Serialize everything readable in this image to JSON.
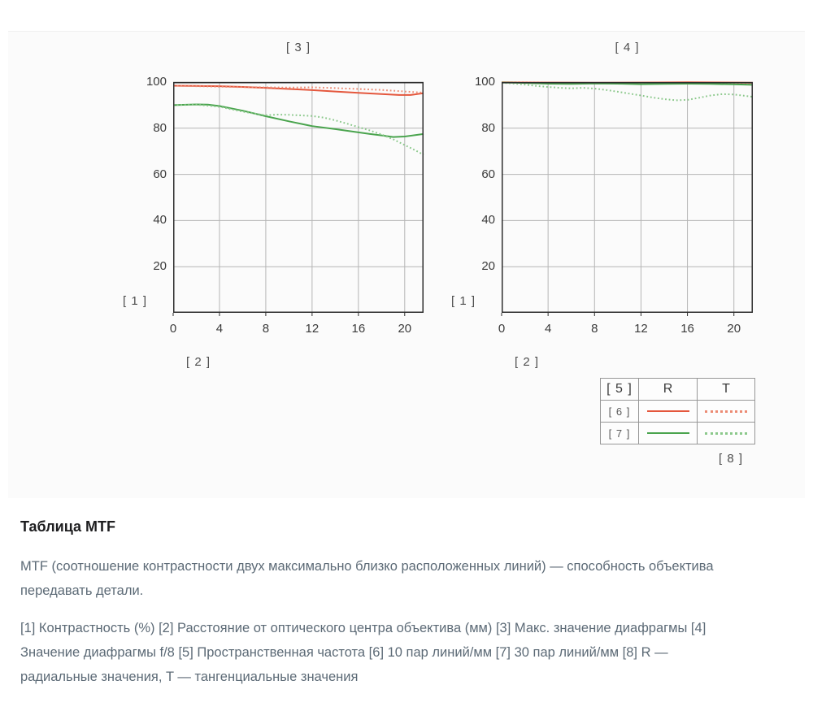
{
  "chart_data": [
    {
      "type": "line",
      "title": "[ 3 ]",
      "ylabel": "[ 1 ]",
      "xlabel": "[ 2 ]",
      "xlim": [
        0,
        21.63
      ],
      "ylim": [
        0,
        100
      ],
      "x_ticks": [
        0,
        4,
        8,
        12,
        16,
        20
      ],
      "y_ticks": [
        20,
        40,
        60,
        80,
        100
      ],
      "grid": true,
      "series": [
        {
          "name": "[6] R (10 пар линий/мм, радиальные)",
          "style": "solid",
          "color": "#e4573d",
          "points": [
            [
              0,
              98.4
            ],
            [
              2,
              98.3
            ],
            [
              4,
              98.2
            ],
            [
              6,
              97.9
            ],
            [
              8,
              97.5
            ],
            [
              10,
              97.0
            ],
            [
              12,
              96.5
            ],
            [
              14,
              95.9
            ],
            [
              16,
              95.3
            ],
            [
              18,
              94.8
            ],
            [
              19.5,
              94.4
            ],
            [
              20.5,
              94.4
            ],
            [
              21.63,
              95.2
            ]
          ]
        },
        {
          "name": "[6] T (10 пар линий/мм, тангенциальные)",
          "style": "dotted",
          "color": "#ec8b74",
          "points": [
            [
              0,
              98.4
            ],
            [
              2,
              98.2
            ],
            [
              4,
              98.0
            ],
            [
              6,
              97.8
            ],
            [
              8,
              97.7
            ],
            [
              10,
              97.6
            ],
            [
              12,
              97.7
            ],
            [
              14,
              97.4
            ],
            [
              16,
              97.0
            ],
            [
              18,
              96.6
            ],
            [
              19.5,
              96.1
            ],
            [
              21.63,
              95.4
            ]
          ]
        },
        {
          "name": "[7] R (30 пар линий/мм, радиальные)",
          "style": "solid",
          "color": "#4aa44e",
          "points": [
            [
              0,
              90.0
            ],
            [
              2,
              90.3
            ],
            [
              3,
              90.2
            ],
            [
              4,
              89.6
            ],
            [
              6,
              87.6
            ],
            [
              8,
              85.2
            ],
            [
              10,
              83.0
            ],
            [
              12,
              80.9
            ],
            [
              14,
              79.6
            ],
            [
              16,
              78.2
            ],
            [
              17,
              77.5
            ],
            [
              18,
              76.9
            ],
            [
              19,
              76.2
            ],
            [
              20,
              76.4
            ],
            [
              21.63,
              77.5
            ]
          ]
        },
        {
          "name": "[7] T (30 пар линий/мм, тангенциальные)",
          "style": "dotted",
          "color": "#8bc88b",
          "points": [
            [
              0,
              90.0
            ],
            [
              2,
              90.2
            ],
            [
              4,
              89.3
            ],
            [
              6,
              87.2
            ],
            [
              8,
              85.6
            ],
            [
              9,
              85.9
            ],
            [
              10,
              85.8
            ],
            [
              12,
              85.3
            ],
            [
              13,
              84.6
            ],
            [
              14,
              83.4
            ],
            [
              15,
              82.0
            ],
            [
              16,
              80.5
            ],
            [
              17,
              79.0
            ],
            [
              18,
              77.3
            ],
            [
              19,
              75.2
            ],
            [
              20,
              72.7
            ],
            [
              21,
              70.2
            ],
            [
              21.63,
              68.5
            ]
          ]
        }
      ]
    },
    {
      "type": "line",
      "title": "[ 4 ]",
      "ylabel": "[ 1 ]",
      "xlabel": "[ 2 ]",
      "xlim": [
        0,
        21.63
      ],
      "ylim": [
        0,
        100
      ],
      "x_ticks": [
        0,
        4,
        8,
        12,
        16,
        20
      ],
      "y_ticks": [
        20,
        40,
        60,
        80,
        100
      ],
      "grid": true,
      "series": [
        {
          "name": "[6] R (10 пар линий/мм, радиальные)",
          "style": "solid",
          "color": "#e4573d",
          "points": [
            [
              0,
              99.9
            ],
            [
              4,
              99.8
            ],
            [
              8,
              99.7
            ],
            [
              12,
              99.8
            ],
            [
              16,
              99.9
            ],
            [
              20,
              99.8
            ],
            [
              21.63,
              99.7
            ]
          ]
        },
        {
          "name": "[6] T (10 пар линий/мм, тангенциальные)",
          "style": "dotted",
          "color": "#ec8b74",
          "points": [
            [
              0,
              99.9
            ],
            [
              4,
              99.7
            ],
            [
              8,
              99.5
            ],
            [
              12,
              99.5
            ],
            [
              16,
              99.6
            ],
            [
              20,
              99.5
            ],
            [
              21.63,
              99.4
            ]
          ]
        },
        {
          "name": "[7] R (30 пар линий/мм, радиальные)",
          "style": "solid",
          "color": "#4aa44e",
          "points": [
            [
              0,
              99.8
            ],
            [
              2,
              99.6
            ],
            [
              4,
              99.3
            ],
            [
              6,
              99.2
            ],
            [
              8,
              99.4
            ],
            [
              10,
              99.3
            ],
            [
              12,
              99.1
            ],
            [
              14,
              99.2
            ],
            [
              16,
              99.3
            ],
            [
              18,
              99.2
            ],
            [
              20,
              99.0
            ],
            [
              21.63,
              98.8
            ]
          ]
        },
        {
          "name": "[7] T (30 пар линий/мм, тангенциальные)",
          "style": "dotted",
          "color": "#8bc88b",
          "points": [
            [
              0,
              99.7
            ],
            [
              1,
              99.4
            ],
            [
              2,
              98.9
            ],
            [
              3,
              98.3
            ],
            [
              4,
              97.9
            ],
            [
              5,
              97.5
            ],
            [
              6,
              97.3
            ],
            [
              7,
              97.5
            ],
            [
              8,
              97.2
            ],
            [
              9,
              96.6
            ],
            [
              10,
              95.8
            ],
            [
              11,
              95.0
            ],
            [
              12,
              94.2
            ],
            [
              13,
              93.3
            ],
            [
              14,
              92.6
            ],
            [
              15,
              92.1
            ],
            [
              16,
              92.3
            ],
            [
              17,
              93.2
            ],
            [
              18,
              94.2
            ],
            [
              19,
              94.8
            ],
            [
              20,
              94.6
            ],
            [
              21,
              94.0
            ],
            [
              21.63,
              93.6
            ]
          ]
        }
      ]
    }
  ],
  "legend": {
    "header": [
      "[ 5 ]",
      "R",
      "T"
    ],
    "rows": [
      {
        "label": "[ 6 ]",
        "solid_color": "#e4573d",
        "dotted_color": "#ec8b74"
      },
      {
        "label": "[ 7 ]",
        "solid_color": "#4aa44e",
        "dotted_color": "#8bc88b"
      }
    ],
    "footer_tag": "[ 8 ]"
  },
  "text": {
    "heading": "Таблица MTF",
    "paragraph1": "MTF (соотношение контрастности двух максимально близко расположенных линий) — способность объектива\nпередавать детали.",
    "paragraph2": "[1] Контрастность (%) [2] Расстояние от оптического центра объектива (мм) [3] Макс. значение диафрагмы [4]\nЗначение диафрагмы f/8 [5] Пространственная частота [6] 10 пар линий/мм [7] 30 пар линий/мм [8] R —\nрадиальные значения, T — тангенциальные значения"
  },
  "colors": {
    "axis": "#2d2d2d",
    "grid": "#b5b5b5",
    "tick_text": "#3a3a3a",
    "tag_text": "#4d4d4d",
    "body_text": "#5c6a76"
  }
}
